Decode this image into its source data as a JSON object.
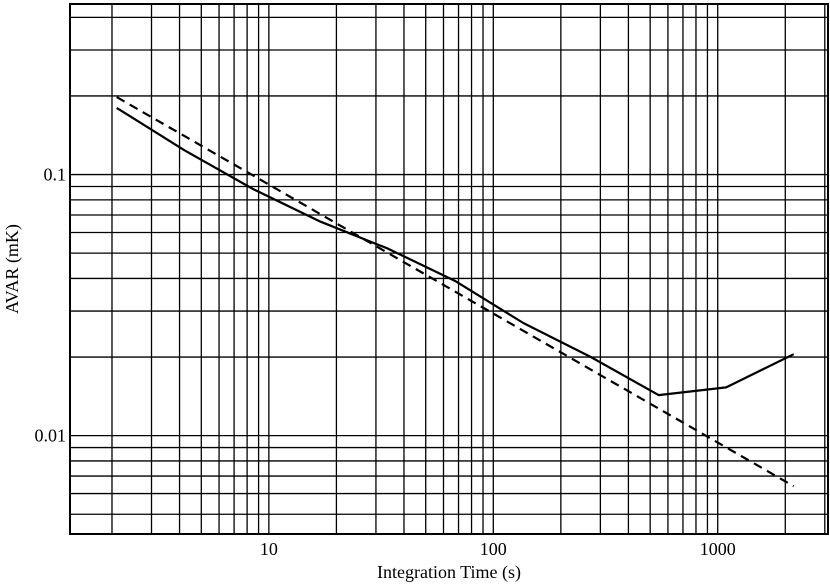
{
  "chart_data": {
    "type": "line",
    "title": "",
    "xlabel": "Integration Time  (s)",
    "ylabel": "AVAR  (mK)",
    "x_scale": "log",
    "y_scale": "log",
    "xlim": [
      1.3,
      3100
    ],
    "ylim": [
      0.0042,
      0.45
    ],
    "grid": true,
    "x_ticks": [
      {
        "value": 10,
        "label": "10"
      },
      {
        "value": 100,
        "label": "100"
      },
      {
        "value": 1000,
        "label": "1000"
      }
    ],
    "y_ticks": [
      {
        "value": 0.01,
        "label": "0.01"
      },
      {
        "value": 0.1,
        "label": "0.1"
      }
    ],
    "series": [
      {
        "style": "solid",
        "color": "#000000",
        "x": [
          2.1,
          4.2,
          8.5,
          17,
          34,
          68,
          136,
          272,
          545,
          1090,
          2180
        ],
        "y": [
          0.18,
          0.124,
          0.088,
          0.066,
          0.052,
          0.039,
          0.027,
          0.02,
          0.0143,
          0.0153,
          0.0205
        ]
      },
      {
        "style": "dashed",
        "color": "#000000",
        "x": [
          2.1,
          2180
        ],
        "y": [
          0.198,
          0.0064
        ]
      }
    ]
  }
}
